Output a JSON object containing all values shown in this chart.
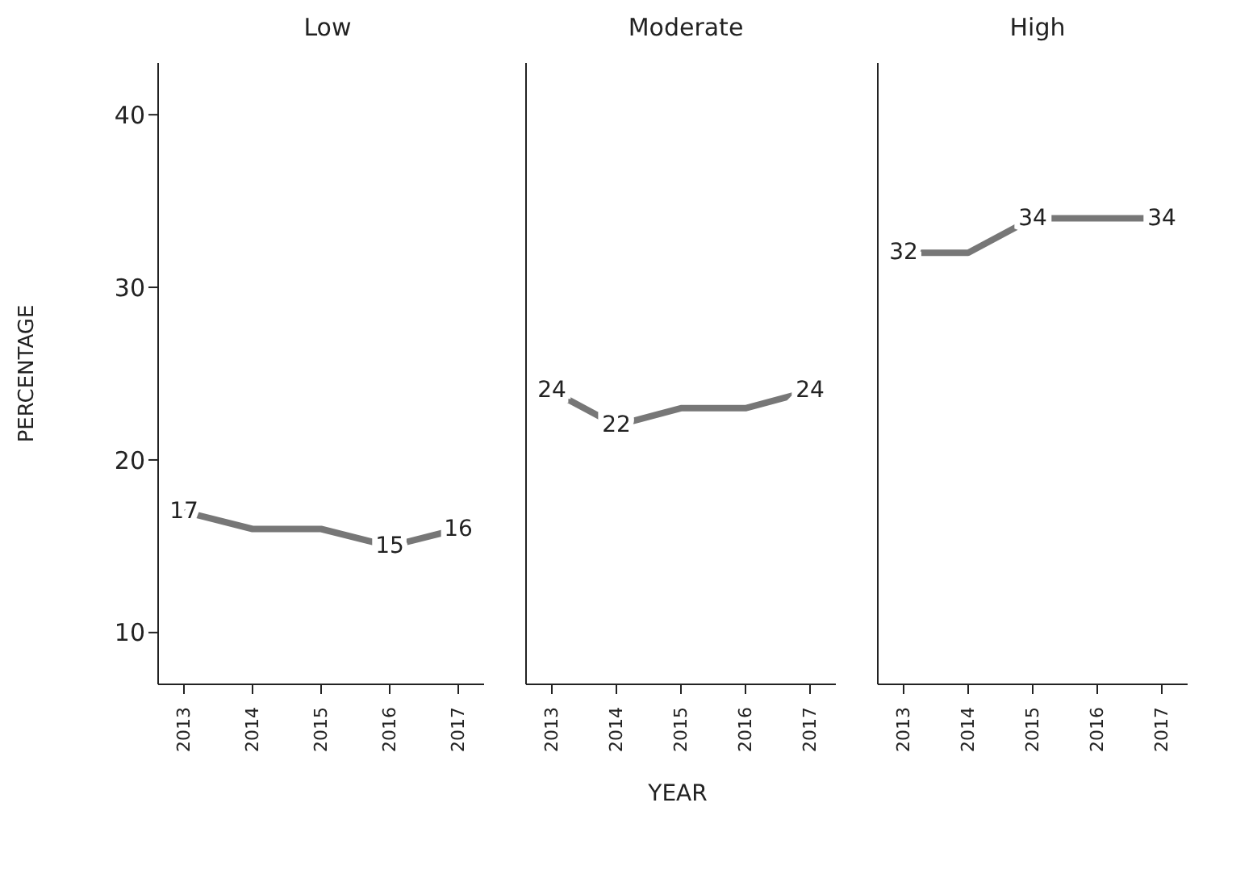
{
  "chart_data": [
    {
      "type": "line",
      "title": "Low",
      "ylabel": "PERCENTAGE",
      "categories": [
        "2013",
        "2014",
        "2015",
        "2016",
        "2017"
      ],
      "ylim": [
        7,
        43
      ],
      "yticks": [
        10,
        20,
        30,
        40
      ],
      "marker": "none",
      "line_style": "solid",
      "series": [
        {
          "color": "#777777",
          "values": [
            17,
            16,
            16,
            15,
            16
          ],
          "value_labels": [
            "17",
            null,
            null,
            "15",
            "16"
          ]
        }
      ]
    },
    {
      "type": "line",
      "title": "Moderate",
      "xlabel": "YEAR",
      "categories": [
        "2013",
        "2014",
        "2015",
        "2016",
        "2017"
      ],
      "ylim": [
        7,
        43
      ],
      "yticks": [
        10,
        20,
        30,
        40
      ],
      "tick_labels": "x",
      "marker": "none",
      "line_style": "solid",
      "series": [
        {
          "color": "#777777",
          "values": [
            24,
            22,
            23,
            23,
            24
          ],
          "value_labels": [
            "24",
            "22",
            null,
            null,
            "24"
          ]
        }
      ]
    },
    {
      "type": "line",
      "title": "High",
      "categories": [
        "2013",
        "2014",
        "2015",
        "2016",
        "2017"
      ],
      "ylim": [
        7,
        43
      ],
      "yticks": [
        10,
        20,
        30,
        40
      ],
      "tick_labels": "x",
      "marker": "none",
      "line_style": "solid",
      "series": [
        {
          "color": "#777777",
          "values": [
            32,
            32,
            34,
            34,
            34
          ],
          "value_labels": [
            "32",
            null,
            "34",
            null,
            "34"
          ]
        }
      ]
    }
  ]
}
